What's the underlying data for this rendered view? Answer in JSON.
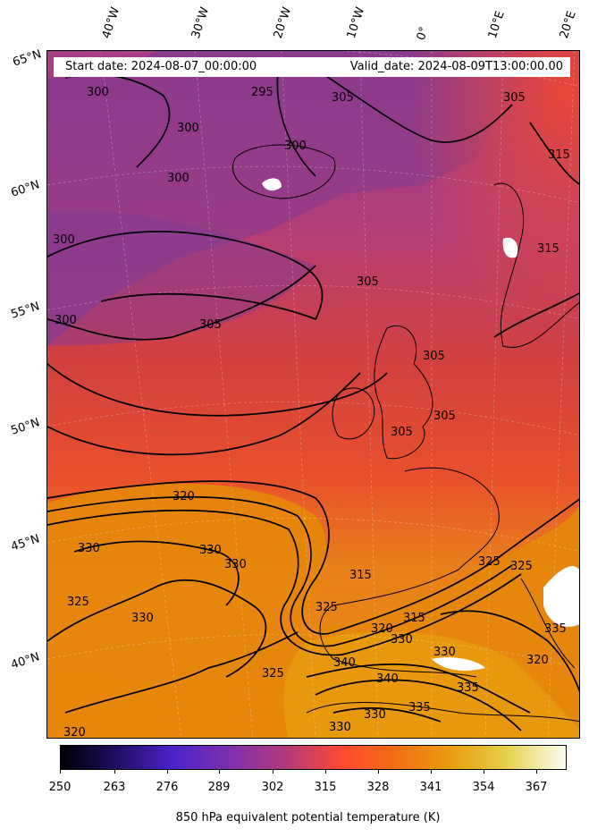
{
  "header": {
    "start_date": "Start date: 2024-08-07_00:00:00",
    "valid_date": "Valid_date: 2024-08-09T13:00:00.00"
  },
  "longitude_labels": [
    "40°W",
    "30°W",
    "20°W",
    "10°W",
    "0°",
    "10°E",
    "20°E"
  ],
  "latitude_labels": [
    "65°N",
    "60°N",
    "55°N",
    "50°N",
    "45°N",
    "40°N"
  ],
  "colorbar": {
    "ticks": [
      "250",
      "263",
      "276",
      "289",
      "302",
      "315",
      "328",
      "341",
      "354",
      "367"
    ],
    "label": "850 hPa equivalent potential temperature (K)",
    "colormap": "CMRmap-like (black-purple-red-orange-yellow-white)"
  },
  "contour_labels": [
    "300",
    "300",
    "295",
    "305",
    "305",
    "300",
    "300",
    "300",
    "305",
    "305",
    "300",
    "305",
    "305",
    "305",
    "315",
    "315",
    "320",
    "330",
    "330",
    "330",
    "325",
    "330",
    "315",
    "325",
    "325",
    "325",
    "315",
    "320",
    "330",
    "330",
    "340",
    "340",
    "335",
    "335",
    "330",
    "325",
    "320",
    "335",
    "330",
    "320"
  ],
  "colors": {
    "background": "#ffffff",
    "cold_purple": "#8a3a8a",
    "warm_red": "#e8403a",
    "orange": "#e87a10",
    "amber": "#e6920a"
  }
}
